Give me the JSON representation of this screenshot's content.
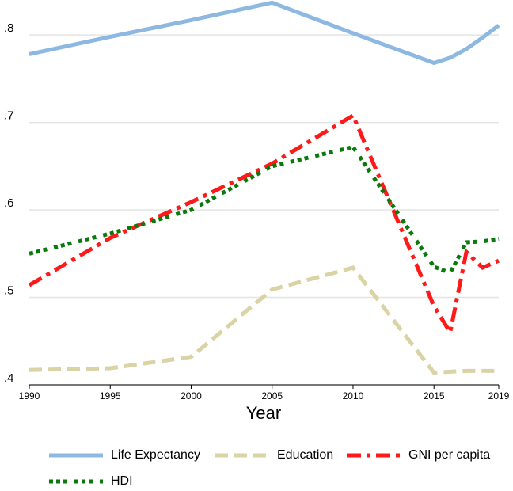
{
  "chart_data": {
    "type": "line",
    "xlabel": "Year",
    "x": [
      1990,
      1995,
      2000,
      2005,
      2010,
      2015,
      2016,
      2017,
      2018,
      2019
    ],
    "xlim": [
      1990,
      2019
    ],
    "xticks": [
      1990,
      1995,
      2000,
      2005,
      2010,
      2015,
      2019
    ],
    "ylim": [
      0.4,
      0.84
    ],
    "yticks": [
      {
        "value": 0.4,
        "label": ".4"
      },
      {
        "value": 0.5,
        "label": ".5"
      },
      {
        "value": 0.6,
        "label": ".6"
      },
      {
        "value": 0.7,
        "label": ".7"
      },
      {
        "value": 0.8,
        "label": ".8"
      }
    ],
    "grid": true,
    "legend": "bottom",
    "series": [
      {
        "name": "Life Expectancy",
        "color": "#8db8e2",
        "style": "solid",
        "values": [
          0.778,
          0.798,
          0.817,
          0.837,
          0.802,
          0.768,
          0.774,
          0.784,
          0.797,
          0.811
        ]
      },
      {
        "name": "Education",
        "color": "#d9d3a6",
        "style": "dash",
        "values": [
          0.417,
          0.419,
          0.432,
          0.509,
          0.534,
          0.414,
          0.415,
          0.416,
          0.416,
          0.416
        ]
      },
      {
        "name": "GNI per capita",
        "color": "#ff1a1a",
        "style": "dashdot",
        "values": [
          0.514,
          0.568,
          0.609,
          0.653,
          0.708,
          0.49,
          0.46,
          0.552,
          0.534,
          0.542
        ]
      },
      {
        "name": "HDI",
        "color": "#0a7a0a",
        "style": "dot",
        "values": [
          0.55,
          0.573,
          0.6,
          0.65,
          0.672,
          0.535,
          0.528,
          0.563,
          0.564,
          0.567
        ]
      }
    ]
  }
}
